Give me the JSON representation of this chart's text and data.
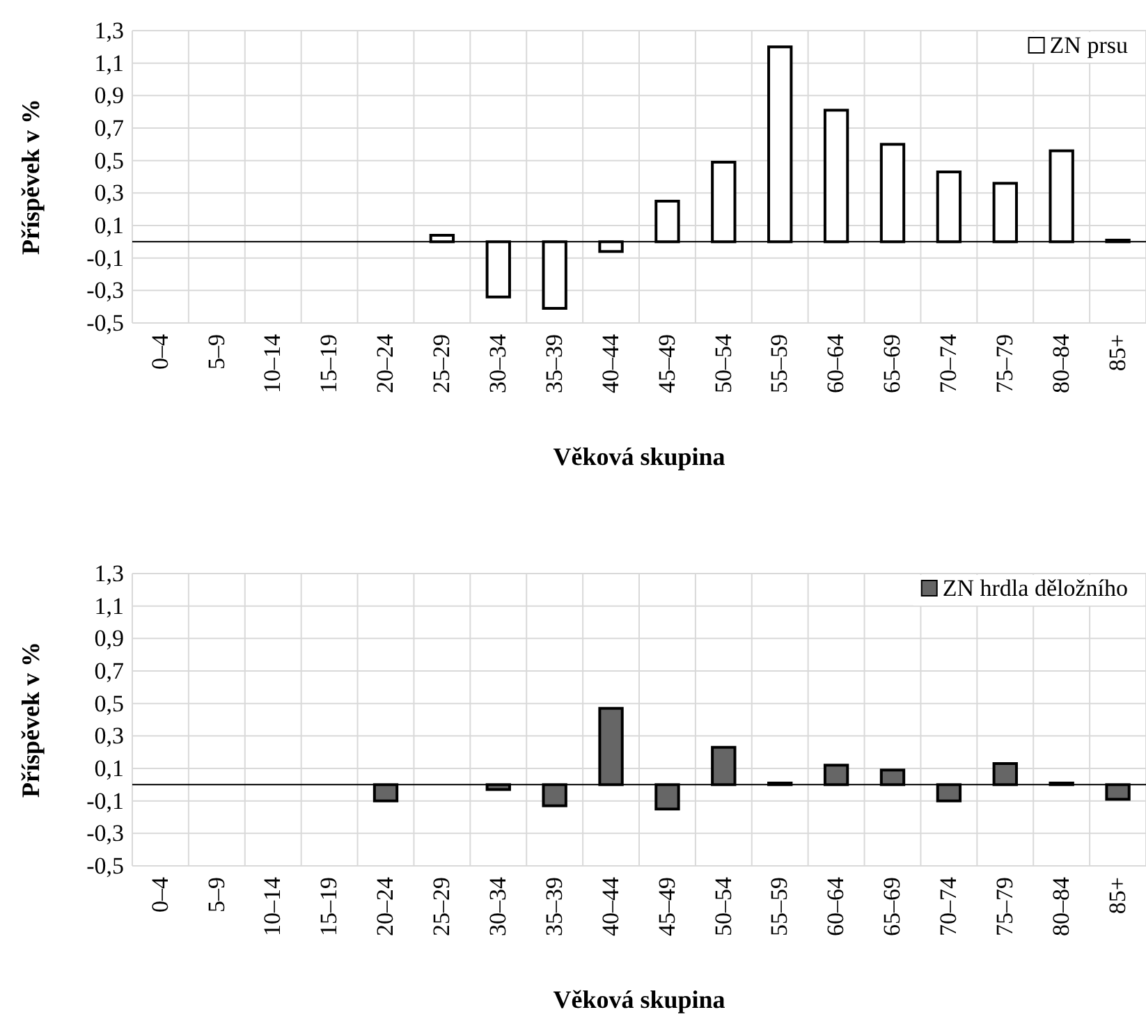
{
  "chart_data": [
    {
      "type": "bar",
      "xlabel": "Věková skupina",
      "ylabel": "Příspěvek v %",
      "categories": [
        "0–4",
        "5–9",
        "10–14",
        "15–19",
        "20–24",
        "25–29",
        "30–34",
        "35–39",
        "40–44",
        "45–49",
        "50–54",
        "55–59",
        "60–64",
        "65–69",
        "70–74",
        "75–79",
        "80–84",
        "85+"
      ],
      "series": [
        {
          "name": "ZN prsu",
          "color": "#ffffff",
          "values": [
            null,
            null,
            null,
            null,
            null,
            0.04,
            -0.34,
            -0.41,
            -0.06,
            0.25,
            0.49,
            1.2,
            0.81,
            0.6,
            0.43,
            0.36,
            0.56,
            0.01
          ]
        }
      ],
      "ylim": [
        -0.5,
        1.3
      ],
      "yticks": [
        {
          "value": -0.5,
          "label": "-0,5"
        },
        {
          "value": -0.3,
          "label": "-0,3"
        },
        {
          "value": -0.1,
          "label": "-0,1"
        },
        {
          "value": 0.1,
          "label": "0,1"
        },
        {
          "value": 0.3,
          "label": "0,3"
        },
        {
          "value": 0.5,
          "label": "0,5"
        },
        {
          "value": 0.7,
          "label": "0,7"
        },
        {
          "value": 0.9,
          "label": "0,9"
        },
        {
          "value": 1.1,
          "label": "1,1"
        },
        {
          "value": 1.3,
          "label": "1,3"
        }
      ],
      "grid": true,
      "legend": "top right"
    },
    {
      "type": "bar",
      "xlabel": "Věková skupina",
      "ylabel": "Příspěvek v %",
      "categories": [
        "0–4",
        "5–9",
        "10–14",
        "15–19",
        "20–24",
        "25–29",
        "30–34",
        "35–39",
        "40–44",
        "45–49",
        "50–54",
        "55–59",
        "60–64",
        "65–69",
        "70–74",
        "75–79",
        "80–84",
        "85+"
      ],
      "series": [
        {
          "name": "ZN hrdla děložního",
          "color": "#666666",
          "values": [
            null,
            null,
            null,
            null,
            -0.1,
            null,
            -0.03,
            -0.13,
            0.47,
            -0.15,
            0.23,
            0.01,
            0.12,
            0.09,
            -0.1,
            0.13,
            0.01,
            -0.09
          ]
        }
      ],
      "ylim": [
        -0.5,
        1.3
      ],
      "yticks": [
        {
          "value": -0.5,
          "label": "-0,5"
        },
        {
          "value": -0.3,
          "label": "-0,3"
        },
        {
          "value": -0.1,
          "label": "-0,1"
        },
        {
          "value": 0.1,
          "label": "0,1"
        },
        {
          "value": 0.3,
          "label": "0,3"
        },
        {
          "value": 0.5,
          "label": "0,5"
        },
        {
          "value": 0.7,
          "label": "0,7"
        },
        {
          "value": 0.9,
          "label": "0,9"
        },
        {
          "value": 1.1,
          "label": "1,1"
        },
        {
          "value": 1.3,
          "label": "1,3"
        }
      ],
      "grid": true,
      "legend": "top right"
    }
  ]
}
